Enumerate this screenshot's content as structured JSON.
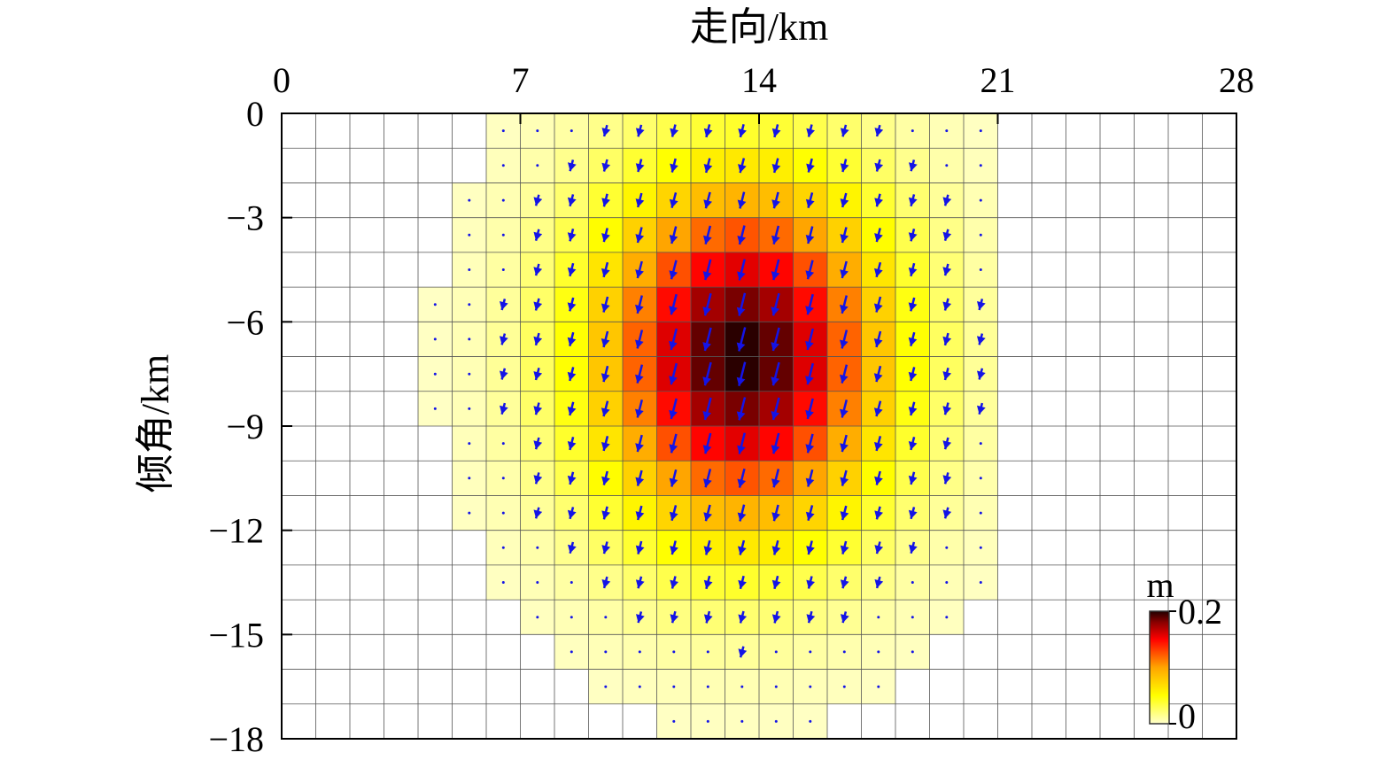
{
  "chart_data": {
    "type": "heatmap",
    "title": "",
    "xlabel": "走向/km",
    "ylabel": "倾角/km",
    "xlim": [
      0,
      28
    ],
    "ylim": [
      -18,
      0
    ],
    "x_ticks": [
      0,
      7,
      14,
      21,
      28
    ],
    "y_ticks": [
      0,
      -3,
      -6,
      -9,
      -12,
      -15,
      -18
    ],
    "x_tick_labels": [
      "0",
      "7",
      "14",
      "21",
      "28"
    ],
    "y_tick_labels": [
      "0",
      "−3",
      "−6",
      "−9",
      "−12",
      "−15",
      "−18"
    ],
    "grid": true,
    "cell_size_km": [
      1,
      1
    ],
    "slip_peak": {
      "value_m": 0.2,
      "strike_km": 13.5,
      "dip_km": -7.0
    },
    "slip_model": "gaussian patch",
    "slip_sigma_km": [
      3.0,
      3.6
    ],
    "vector_color": "#1414e6",
    "vector_direction": "downward, rake mostly slightly left of vertical",
    "colorbar": {
      "unit": "m",
      "min": 0,
      "max": 0.2,
      "min_label": "0",
      "max_label": "0.2",
      "colors": [
        "#ffffcc",
        "#ffff00",
        "#ffa500",
        "#ff0000",
        "#8b0000",
        "#200000"
      ],
      "placement": "bottom-right"
    }
  }
}
